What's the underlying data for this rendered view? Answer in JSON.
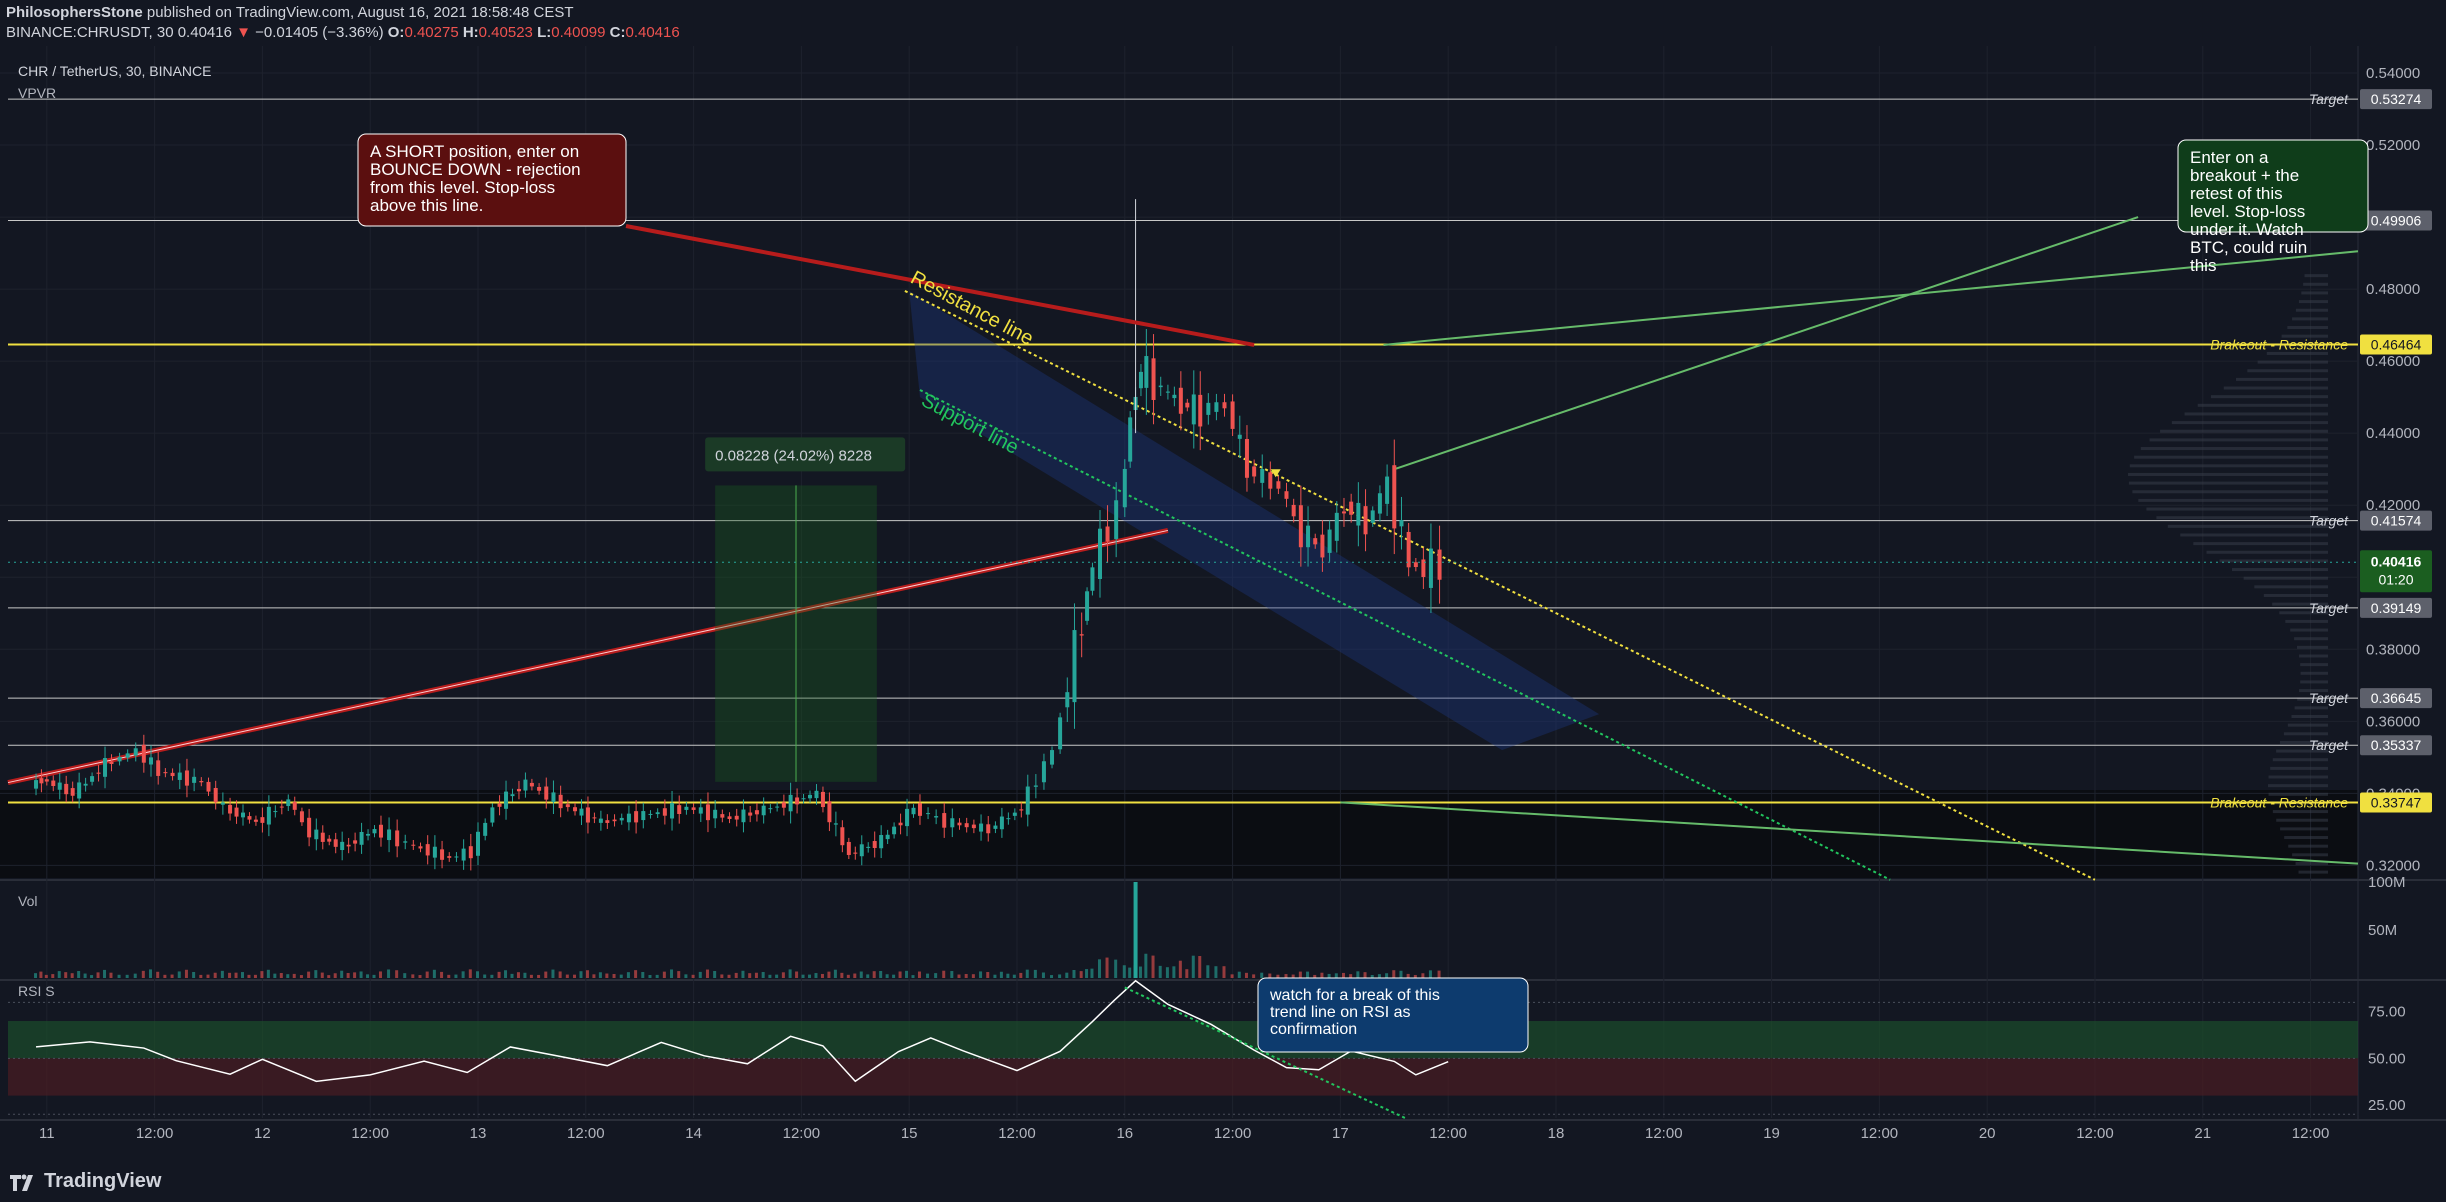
{
  "header": {
    "publisher": "PhilosophersStone",
    "published_text": "published on TradingView.com, August 16, 2021 18:58:48 CEST",
    "symbol_line": "BINANCE:CHRUSDT, 30",
    "last": "0.40416",
    "change_arrow": "▼",
    "change": "−0.01405 (−3.36%)",
    "o_label": "O:",
    "o": "0.40275",
    "h_label": "H:",
    "h": "0.40523",
    "l_label": "L:",
    "l": "0.40099",
    "c_label": "C:",
    "c": "0.40416"
  },
  "chart_title": "CHR / TetherUS, 30, BINANCE",
  "indicator_vpvr": "VPVR",
  "vol_label": "Vol",
  "rsi_label": "RSI S",
  "footer": {
    "brand": "TradingView"
  },
  "colors": {
    "background": "#131722",
    "grid": "#1e222d",
    "up": "#26a69a",
    "down": "#ef5350",
    "yellow": "#f0e040",
    "green_line": "#2e7d32",
    "support": "#22c55e",
    "channel_fill": "#1e3a8a",
    "rsi_upper_band": "#1b4d2b",
    "rsi_lower_band": "#4a1c22"
  },
  "icons": [
    "tradingview-logo-icon",
    "down-triangle-icon"
  ],
  "chart_data": {
    "type": "candlestick",
    "symbol": "CHR / TetherUS",
    "timeframe": "30",
    "exchange": "BINANCE",
    "x_ticks": [
      "11",
      "12:00",
      "12",
      "12:00",
      "13",
      "12:00",
      "14",
      "12:00",
      "15",
      "12:00",
      "16",
      "12:00",
      "17",
      "12:00",
      "18",
      "12:00",
      "19",
      "12:00",
      "20",
      "12:00",
      "21",
      "12:00"
    ],
    "y_ticks": [
      "0.54000",
      "0.52000",
      "0.50000",
      "0.48000",
      "0.46000",
      "0.44000",
      "0.42000",
      "0.40000",
      "0.38000",
      "0.36000",
      "0.34000",
      "0.32000"
    ],
    "ylim": [
      0.3165,
      0.5475
    ],
    "last_price": "0.40416",
    "countdown": "01:20",
    "price_path": [
      [
        10.95,
        0.342
      ],
      [
        11.0,
        0.344
      ],
      [
        11.15,
        0.34
      ],
      [
        11.3,
        0.348
      ],
      [
        11.45,
        0.352
      ],
      [
        11.55,
        0.346
      ],
      [
        11.75,
        0.343
      ],
      [
        11.85,
        0.336
      ],
      [
        12.0,
        0.332
      ],
      [
        12.15,
        0.338
      ],
      [
        12.25,
        0.329
      ],
      [
        12.4,
        0.325
      ],
      [
        12.55,
        0.33
      ],
      [
        12.7,
        0.326
      ],
      [
        12.9,
        0.322
      ],
      [
        13.0,
        0.324
      ],
      [
        13.1,
        0.336
      ],
      [
        13.25,
        0.343
      ],
      [
        13.45,
        0.336
      ],
      [
        13.6,
        0.332
      ],
      [
        13.8,
        0.334
      ],
      [
        14.0,
        0.336
      ],
      [
        14.2,
        0.333
      ],
      [
        14.45,
        0.337
      ],
      [
        14.6,
        0.34
      ],
      [
        14.75,
        0.323
      ],
      [
        14.9,
        0.327
      ],
      [
        15.05,
        0.336
      ],
      [
        15.2,
        0.332
      ],
      [
        15.4,
        0.33
      ],
      [
        15.55,
        0.336
      ],
      [
        15.7,
        0.352
      ],
      [
        15.8,
        0.38
      ],
      [
        15.85,
        0.396
      ],
      [
        15.92,
        0.41
      ],
      [
        16.0,
        0.418
      ],
      [
        16.05,
        0.445
      ],
      [
        16.1,
        0.458
      ],
      [
        16.2,
        0.452
      ],
      [
        16.35,
        0.446
      ],
      [
        16.5,
        0.448
      ],
      [
        16.6,
        0.43
      ],
      [
        16.75,
        0.425
      ],
      [
        16.85,
        0.412
      ],
      [
        16.95,
        0.408
      ],
      [
        17.05,
        0.42
      ],
      [
        17.15,
        0.415
      ],
      [
        17.25,
        0.426
      ],
      [
        17.35,
        0.404
      ],
      [
        17.42,
        0.402
      ],
      [
        17.5,
        0.404
      ]
    ],
    "annotations": {
      "short_note": "A SHORT position, enter on BOUNCE DOWN - rejection from this level. Stop-loss above this line.",
      "long_note": "Enter on a breakout + the retest of this level. Stop-loss under it. Watch BTC, could ruin this",
      "rsi_note": "watch for a break of this trend line on RSI as confirmation",
      "measure": "0.08228 (24.02%) 8228",
      "resistance_line": "Resistance line",
      "support_line": "Support line"
    },
    "levels": [
      {
        "label": "Target",
        "value": "0.53274"
      },
      {
        "label": "Target",
        "value": "0.49906"
      },
      {
        "label": "Brakeout - Resistance",
        "value": "0.46464"
      },
      {
        "label": "Target",
        "value": "0.41574"
      },
      {
        "label": "Target",
        "value": "0.39149"
      },
      {
        "label": "Target",
        "value": "0.36645"
      },
      {
        "label": "Target",
        "value": "0.35337"
      },
      {
        "label": "Brakeout - Resistance",
        "value": "0.33747"
      }
    ],
    "volume": {
      "ticks": [
        "100M",
        "50M"
      ],
      "ylim": [
        0,
        100
      ],
      "peak": {
        "x": 16.05,
        "value": 100
      },
      "base_value": 6
    },
    "rsi": {
      "ticks": [
        "75.00",
        "50.00",
        "25.00"
      ],
      "ylim": [
        18,
        92
      ],
      "upper_band": 70,
      "lower_band": 30,
      "path": [
        [
          10.95,
          60
        ],
        [
          11.2,
          55
        ],
        [
          11.45,
          58
        ],
        [
          11.6,
          52
        ],
        [
          11.85,
          40
        ],
        [
          12.0,
          47
        ],
        [
          12.25,
          38
        ],
        [
          12.5,
          43
        ],
        [
          12.75,
          45
        ],
        [
          12.95,
          41
        ],
        [
          13.15,
          60
        ],
        [
          13.35,
          52
        ],
        [
          13.6,
          48
        ],
        [
          13.85,
          55
        ],
        [
          14.05,
          50
        ],
        [
          14.25,
          51
        ],
        [
          14.45,
          62
        ],
        [
          14.6,
          58
        ],
        [
          14.75,
          40
        ],
        [
          14.95,
          50
        ],
        [
          15.1,
          58
        ],
        [
          15.25,
          52
        ],
        [
          15.5,
          47
        ],
        [
          15.7,
          55
        ],
        [
          15.85,
          72
        ],
        [
          15.95,
          82
        ],
        [
          16.05,
          88
        ],
        [
          16.2,
          76
        ],
        [
          16.4,
          66
        ],
        [
          16.6,
          58
        ],
        [
          16.75,
          48
        ],
        [
          16.9,
          46
        ],
        [
          17.05,
          55
        ],
        [
          17.25,
          52
        ],
        [
          17.35,
          40
        ],
        [
          17.5,
          46
        ]
      ]
    }
  }
}
